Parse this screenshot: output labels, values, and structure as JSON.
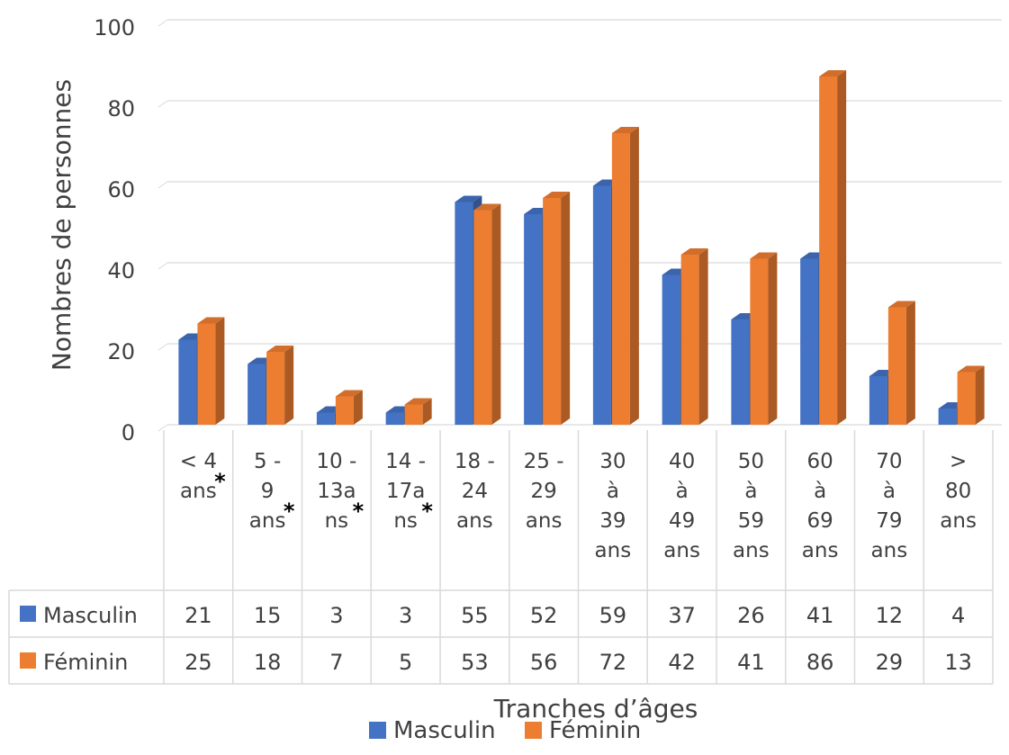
{
  "chart_data": {
    "type": "bar",
    "title": "",
    "xlabel": "Tranches d’âges",
    "ylabel": "Nombres de personnes",
    "ylim": [
      0,
      100
    ],
    "yticks": [
      "0",
      "20",
      "40",
      "60",
      "80",
      "100"
    ],
    "grid": true,
    "legend_position": "bottom",
    "categories": [
      [
        "< 4",
        "ans"
      ],
      [
        "5 -",
        "9",
        "ans"
      ],
      [
        "10 -",
        "13a",
        "ns"
      ],
      [
        "14 -",
        "17a",
        "ns"
      ],
      [
        "18 -",
        "24",
        "ans"
      ],
      [
        "25 -",
        "29",
        "ans"
      ],
      [
        "30",
        "à",
        "39",
        "ans"
      ],
      [
        "40",
        "à",
        "49",
        "ans"
      ],
      [
        "50",
        "à",
        "59",
        "ans"
      ],
      [
        "60",
        "à",
        "69",
        "ans"
      ],
      [
        "70",
        "à",
        "79",
        "ans"
      ],
      [
        ">",
        "80",
        "ans"
      ]
    ],
    "category_marks": [
      "*",
      "*",
      "*",
      "*",
      "",
      "",
      "",
      "",
      "",
      "",
      "",
      ""
    ],
    "series": [
      {
        "name": "Masculin",
        "color": "#4472C4",
        "values": [
          21,
          15,
          3,
          3,
          55,
          52,
          59,
          37,
          26,
          41,
          12,
          4
        ]
      },
      {
        "name": "Féminin",
        "color": "#ED7D31",
        "values": [
          25,
          18,
          7,
          5,
          53,
          56,
          72,
          42,
          41,
          86,
          29,
          13
        ]
      }
    ]
  }
}
